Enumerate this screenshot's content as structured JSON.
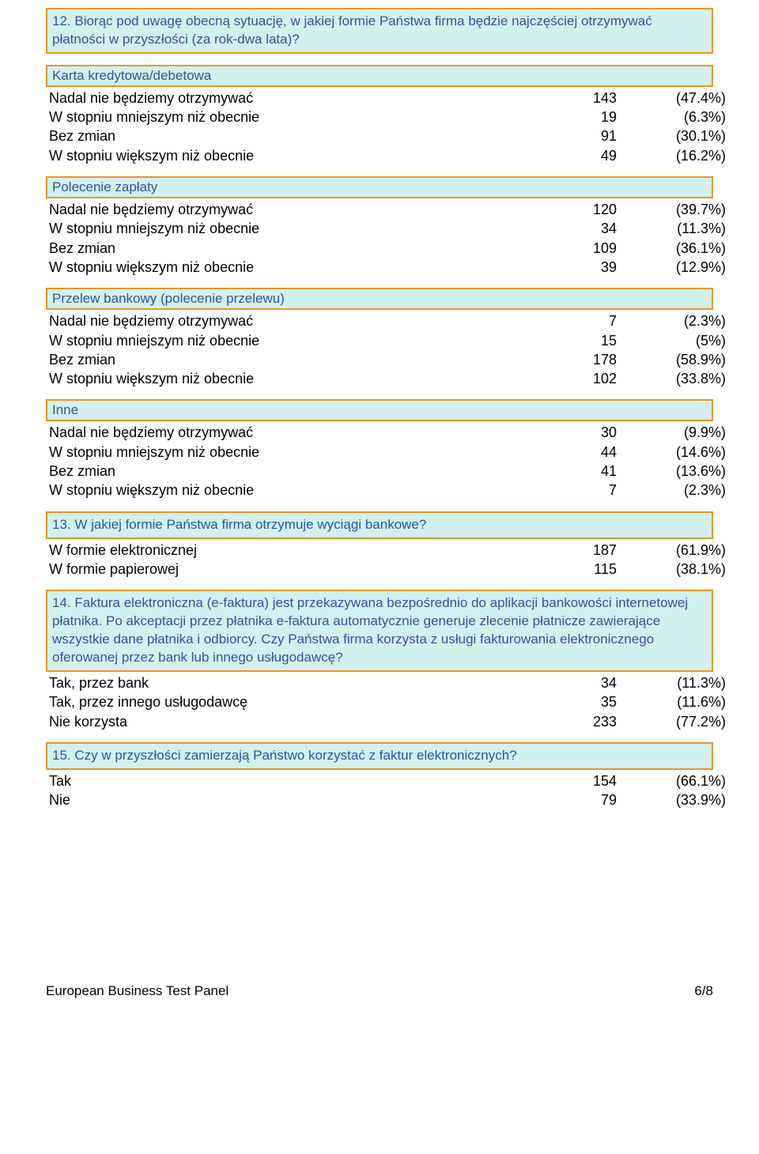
{
  "colors": {
    "box_bg": "#d2f0ee",
    "box_border": "#e6962a",
    "heading_text": "#305496",
    "body_text": "#000000",
    "page_bg": "#ffffff"
  },
  "q12": {
    "title": "12. Biorąc pod uwagę obecną sytuację, w jakiej formie Państwa firma będzie najczęściej otrzymywać płatności w przyszłości (za rok-dwa lata)?",
    "sections": [
      {
        "title": "Karta kredytowa/debetowa",
        "rows": [
          {
            "label": "Nadal nie będziemy otrzymywać",
            "n": "143",
            "p": "(47.4%)"
          },
          {
            "label": "W stopniu mniejszym niż obecnie",
            "n": "19",
            "p": "(6.3%)"
          },
          {
            "label": "Bez zmian",
            "n": "91",
            "p": "(30.1%)"
          },
          {
            "label": "W stopniu większym niż obecnie",
            "n": "49",
            "p": "(16.2%)"
          }
        ]
      },
      {
        "title": "Polecenie zapłaty",
        "rows": [
          {
            "label": "Nadal nie będziemy otrzymywać",
            "n": "120",
            "p": "(39.7%)"
          },
          {
            "label": "W stopniu mniejszym niż obecnie",
            "n": "34",
            "p": "(11.3%)"
          },
          {
            "label": "Bez zmian",
            "n": "109",
            "p": "(36.1%)"
          },
          {
            "label": "W stopniu większym niż obecnie",
            "n": "39",
            "p": "(12.9%)"
          }
        ]
      },
      {
        "title": "Przelew bankowy (polecenie przelewu)",
        "rows": [
          {
            "label": "Nadal nie będziemy otrzymywać",
            "n": "7",
            "p": "(2.3%)"
          },
          {
            "label": "W stopniu mniejszym niż obecnie",
            "n": "15",
            "p": "(5%)"
          },
          {
            "label": "Bez zmian",
            "n": "178",
            "p": "(58.9%)"
          },
          {
            "label": "W stopniu większym niż obecnie",
            "n": "102",
            "p": "(33.8%)"
          }
        ]
      },
      {
        "title": "Inne",
        "rows": [
          {
            "label": "Nadal nie będziemy otrzymywać",
            "n": "30",
            "p": "(9.9%)"
          },
          {
            "label": "W stopniu mniejszym niż obecnie",
            "n": "44",
            "p": "(14.6%)"
          },
          {
            "label": "Bez zmian",
            "n": "41",
            "p": "(13.6%)"
          },
          {
            "label": "W stopniu większym niż obecnie",
            "n": "7",
            "p": "(2.3%)"
          }
        ]
      }
    ]
  },
  "q13": {
    "title": "13. W jakiej formie Państwa firma otrzymuje wyciągi bankowe?",
    "rows": [
      {
        "label": "W formie elektronicznej",
        "n": "187",
        "p": "(61.9%)"
      },
      {
        "label": "W formie papierowej",
        "n": "115",
        "p": "(38.1%)"
      }
    ]
  },
  "q14": {
    "title": "14. Faktura elektroniczna (e-faktura) jest przekazywana bezpośrednio do aplikacji bankowości internetowej płatnika. Po akceptacji przez płatnika e-faktura automatycznie generuje zlecenie płatnicze zawierające wszystkie dane płatnika i odbiorcy. Czy Państwa firma korzysta z usługi fakturowania elektronicznego oferowanej przez bank lub innego usługodawcę?",
    "rows": [
      {
        "label": "Tak, przez bank",
        "n": "34",
        "p": "(11.3%)"
      },
      {
        "label": "Tak, przez innego usługodawcę",
        "n": "35",
        "p": "(11.6%)"
      },
      {
        "label": "Nie korzysta",
        "n": "233",
        "p": "(77.2%)"
      }
    ]
  },
  "q15": {
    "title": "15. Czy w przyszłości zamierzają Państwo korzystać z faktur elektronicznych?",
    "rows": [
      {
        "label": "Tak",
        "n": "154",
        "p": "(66.1%)"
      },
      {
        "label": "Nie",
        "n": "79",
        "p": "(33.9%)"
      }
    ]
  },
  "footer": {
    "left": "European Business Test Panel",
    "right": "6/8"
  }
}
